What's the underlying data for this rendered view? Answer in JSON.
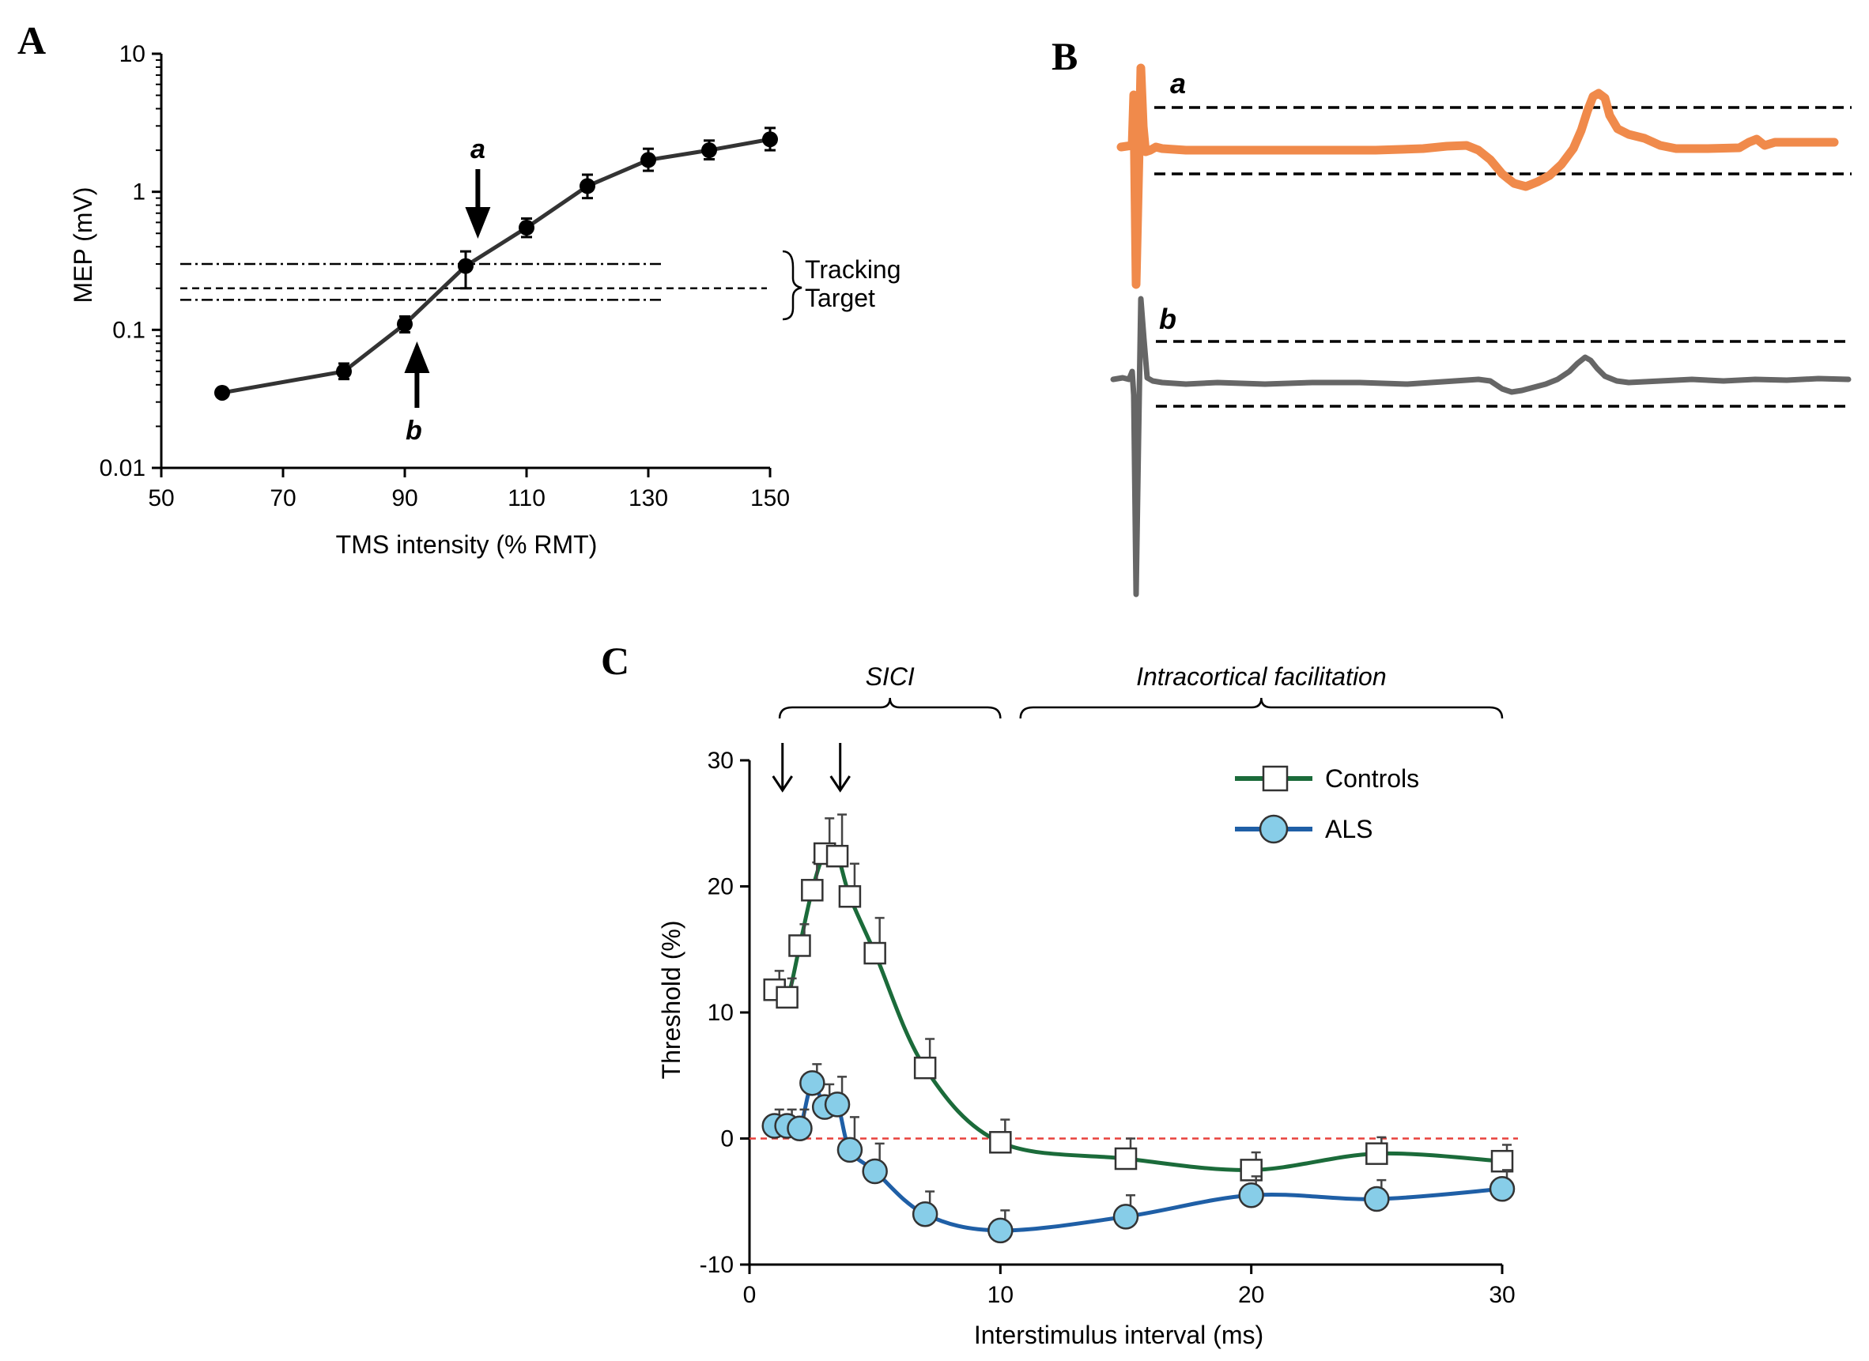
{
  "panel_labels": {
    "a": "A",
    "b": "B",
    "c": "C"
  },
  "chart_data": [
    {
      "panel": "A",
      "type": "line",
      "title": "",
      "xlabel": "TMS intensity (% RMT)",
      "ylabel": "MEP (mV)",
      "x_scale": "linear",
      "y_scale": "log",
      "xlim": [
        50,
        150
      ],
      "ylim": [
        0.01,
        10
      ],
      "x_ticks": [
        50,
        70,
        90,
        110,
        130,
        150
      ],
      "y_ticks": [
        0.01,
        0.1,
        1,
        10
      ],
      "y_tick_labels": [
        "0.01",
        "0.1",
        "1",
        "10"
      ],
      "grid": false,
      "series": [
        {
          "name": "MEP",
          "color": "#333333",
          "x": [
            60,
            80,
            90,
            100,
            110,
            120,
            130,
            140,
            150
          ],
          "y": [
            0.035,
            0.05,
            0.11,
            0.29,
            0.55,
            1.1,
            1.7,
            2.0,
            2.4
          ],
          "error_upper": [
            0.036,
            0.057,
            0.125,
            0.37,
            0.64,
            1.33,
            2.05,
            2.35,
            2.9
          ],
          "error_lower": [
            0.034,
            0.044,
            0.096,
            0.2,
            0.47,
            0.9,
            1.42,
            1.72,
            2.0
          ]
        }
      ],
      "reference_lines": {
        "target": 0.2,
        "upper_band": 0.3,
        "lower_band": 0.165
      },
      "annotations": {
        "tracking_label_line1": "Tracking",
        "tracking_label_line2": "Target",
        "arrow_a_label": "a",
        "arrow_b_label": "b",
        "arrow_a_x": 102,
        "arrow_b_x": 92
      }
    },
    {
      "panel": "B",
      "type": "line",
      "title": "",
      "description_note": "Example MEP traces with tracking bands",
      "series": [
        {
          "name": "a",
          "label": "a",
          "color": "#f08a4b"
        },
        {
          "name": "b",
          "label": "b",
          "color": "#666666"
        }
      ]
    },
    {
      "panel": "C",
      "type": "line",
      "title": "",
      "xlabel": "Interstimulus interval (ms)",
      "ylabel": "Threshold (%)",
      "xlim": [
        0,
        30
      ],
      "ylim": [
        -10,
        30
      ],
      "x_ticks": [
        0,
        10,
        20,
        30
      ],
      "y_ticks": [
        -10,
        0,
        10,
        20,
        30
      ],
      "grid": false,
      "zero_line_color": "#e8413c",
      "brackets": [
        {
          "label": "SICI",
          "x_start": 1.2,
          "x_end": 10
        },
        {
          "label": "Intracortical facilitation",
          "x_start": 10.8,
          "x_end": 30
        }
      ],
      "arrows_x": [
        1,
        3.3
      ],
      "legend": {
        "position": "top-right",
        "entries": [
          "Controls",
          "ALS"
        ]
      },
      "series": [
        {
          "name": "Controls",
          "marker": "square",
          "color": "#1b6b3a",
          "x": [
            1,
            1.5,
            2,
            2.5,
            3,
            3.5,
            4,
            5,
            7,
            10,
            15,
            20,
            25,
            30
          ],
          "y": [
            11.8,
            11.2,
            15.3,
            19.7,
            22.6,
            22.4,
            19.2,
            14.7,
            5.6,
            -0.3,
            -1.6,
            -2.5,
            -1.2,
            -1.8
          ],
          "error": [
            1.5,
            1.5,
            1.7,
            2.2,
            2.8,
            3.3,
            2.6,
            2.8,
            2.3,
            1.8,
            1.6,
            1.4,
            1.3,
            1.3
          ]
        },
        {
          "name": "ALS",
          "marker": "circle",
          "color": "#1f5fa6",
          "fill": "#87cde8",
          "x": [
            1,
            1.5,
            2,
            2.5,
            3,
            3.5,
            4,
            5,
            7,
            10,
            15,
            20,
            25,
            30
          ],
          "y": [
            1.0,
            1.0,
            0.8,
            4.4,
            2.5,
            2.7,
            -0.9,
            -2.6,
            -6.0,
            -7.3,
            -6.2,
            -4.5,
            -4.8,
            -4.0
          ],
          "error": [
            1.3,
            1.3,
            1.5,
            1.5,
            1.8,
            2.2,
            2.6,
            2.2,
            1.8,
            1.6,
            1.7,
            1.5,
            1.5,
            1.5
          ]
        }
      ]
    }
  ]
}
